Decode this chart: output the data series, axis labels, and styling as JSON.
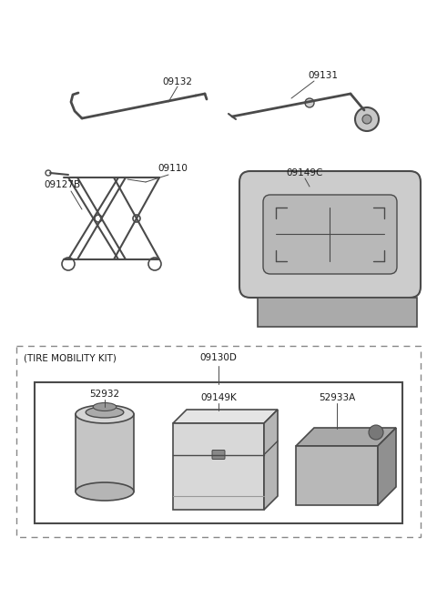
{
  "bg_color": "#ffffff",
  "lc": "#4a4a4a",
  "tc": "#1a1a1a",
  "fs": 7.5,
  "fig_w": 4.8,
  "fig_h": 6.57,
  "dpi": 100,
  "label_09132": "09132",
  "label_09131": "09131",
  "label_09110": "09110",
  "label_09127B": "09127B",
  "label_09149C": "09149C",
  "label_09130D": "09130D",
  "label_52932": "52932",
  "label_09149K": "09149K",
  "label_52933A": "52933A",
  "label_tmk": "(TIRE MOBILITY KIT)"
}
